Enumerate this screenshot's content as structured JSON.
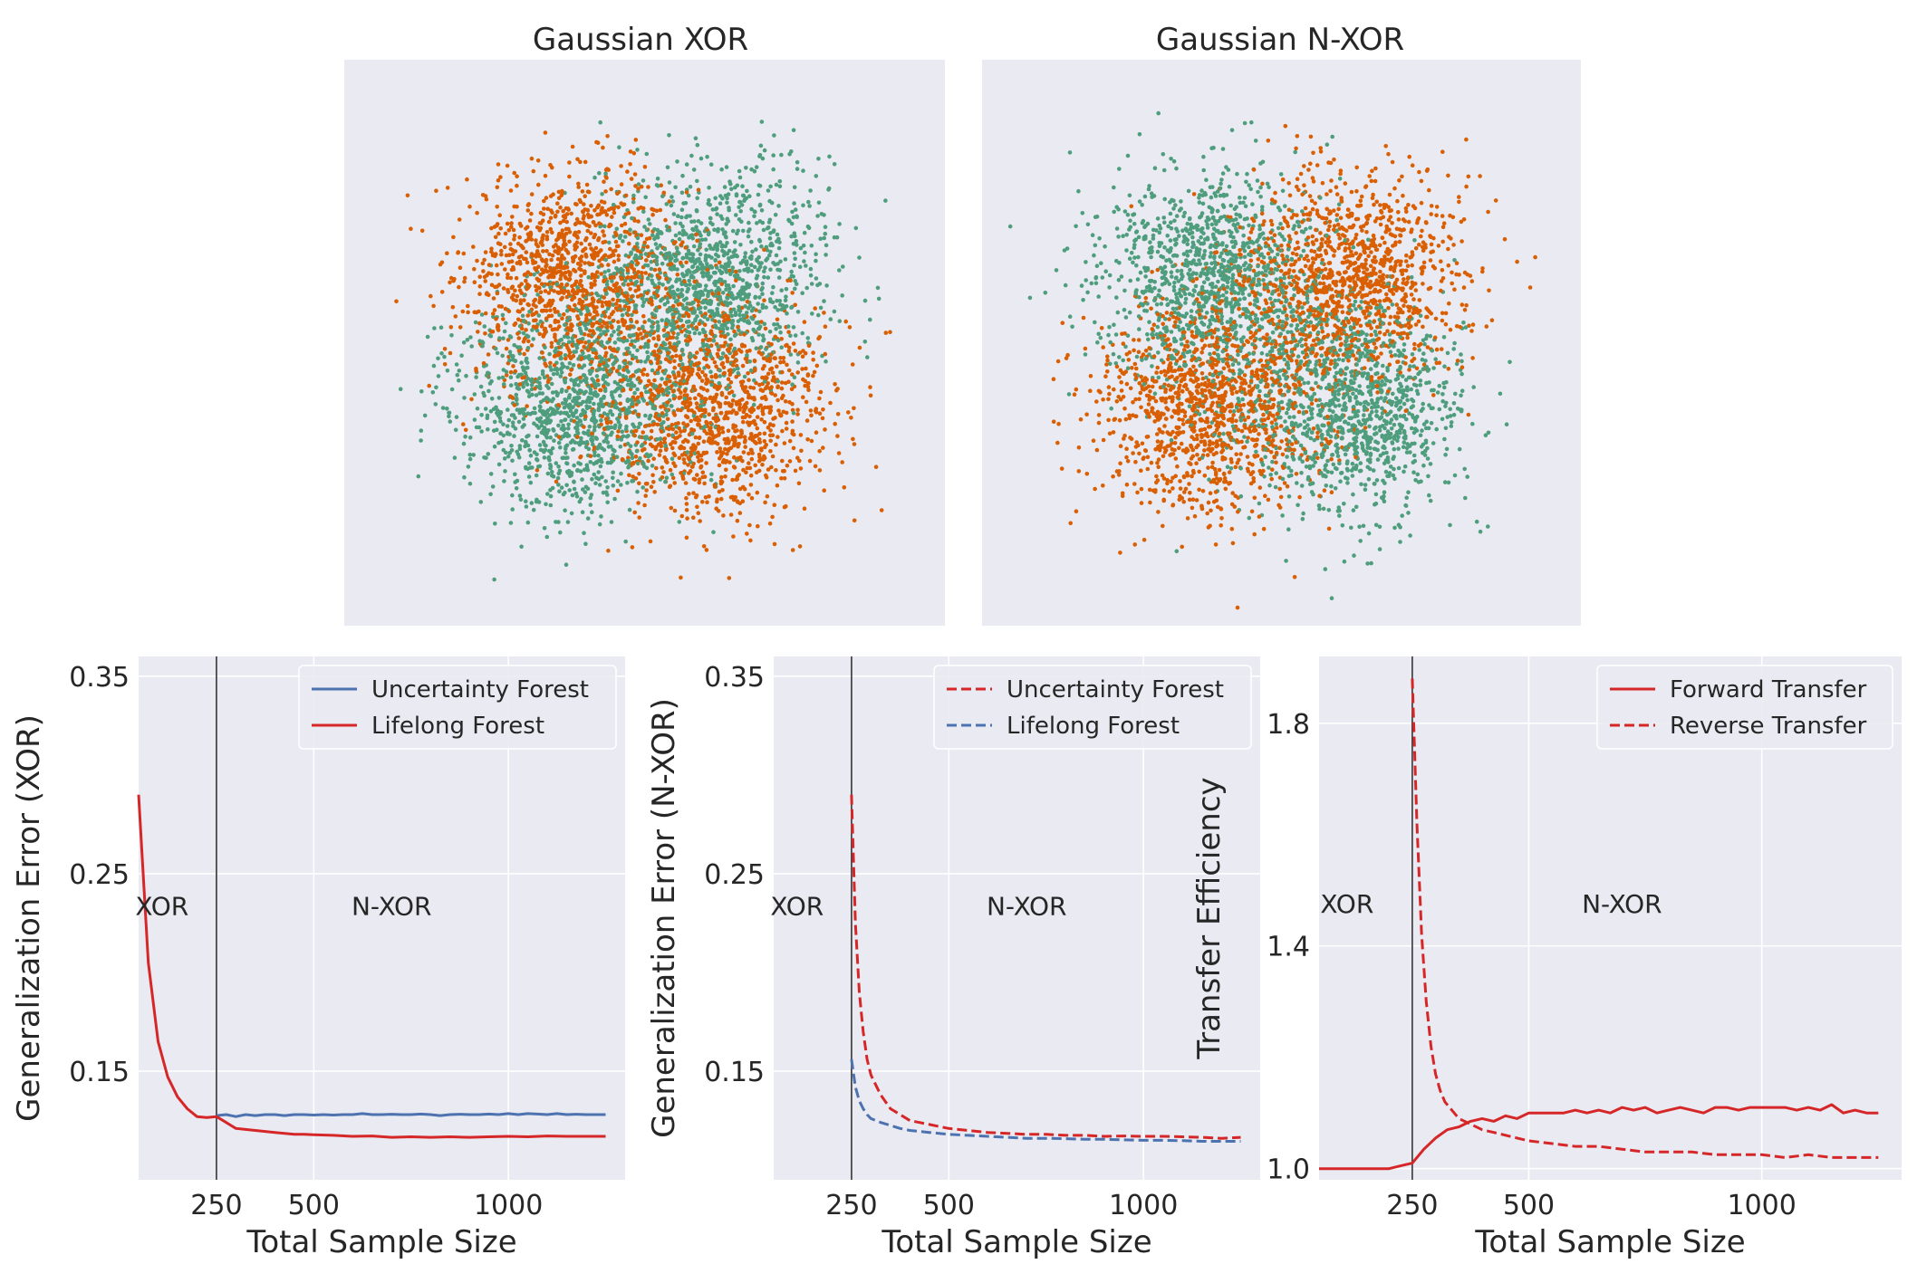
{
  "colors": {
    "panel_bg": "#EAEAF2",
    "grid": "#FFFFFF",
    "scatter_orange": "#D95F02",
    "scatter_green": "#4E9E7E",
    "blue": "#4C72B0",
    "red": "#D62728",
    "vline": "#333333"
  },
  "chart_data": [
    {
      "type": "scatter",
      "title": "Gaussian XOR",
      "axes_visible": false,
      "grid": false,
      "xlim": [
        -2.4,
        2.4
      ],
      "ylim": [
        -2.4,
        2.4
      ],
      "clusters": [
        {
          "class": "orange",
          "center": [
            -0.55,
            0.55
          ],
          "std": 0.45,
          "n": 1200
        },
        {
          "class": "orange",
          "center": [
            0.55,
            -0.55
          ],
          "std": 0.45,
          "n": 1200
        },
        {
          "class": "green",
          "center": [
            0.55,
            0.55
          ],
          "std": 0.45,
          "n": 1200
        },
        {
          "class": "green",
          "center": [
            -0.55,
            -0.55
          ],
          "std": 0.45,
          "n": 1200
        }
      ]
    },
    {
      "type": "scatter",
      "title": "Gaussian N-XOR",
      "axes_visible": false,
      "grid": false,
      "xlim": [
        -2.4,
        2.4
      ],
      "ylim": [
        -2.4,
        2.4
      ],
      "clusters": [
        {
          "class": "green",
          "center": [
            -0.55,
            0.55
          ],
          "std": 0.45,
          "n": 1200
        },
        {
          "class": "green",
          "center": [
            0.55,
            -0.55
          ],
          "std": 0.45,
          "n": 1200
        },
        {
          "class": "orange",
          "center": [
            0.55,
            0.55
          ],
          "std": 0.45,
          "n": 1200
        },
        {
          "class": "orange",
          "center": [
            -0.55,
            -0.55
          ],
          "std": 0.45,
          "n": 1200
        }
      ]
    },
    {
      "type": "line",
      "title": "",
      "xlabel": "Total Sample Size",
      "ylabel": "Generalization Error (XOR)",
      "xlim": [
        50,
        1300
      ],
      "ylim": [
        0.095,
        0.36
      ],
      "xticks": [
        250,
        500,
        1000
      ],
      "xtick_labels": [
        "250",
        "500",
        "1000"
      ],
      "yticks": [
        0.15,
        0.25,
        0.35
      ],
      "ytick_labels": [
        "0.15",
        "0.25",
        "0.35"
      ],
      "grid": true,
      "vline": 250,
      "annotations": [
        {
          "text": "XOR",
          "x": 110,
          "y": 0.229
        },
        {
          "text": "N-XOR",
          "x": 700,
          "y": 0.229
        }
      ],
      "legend": "top-right",
      "series": [
        {
          "name": "Uncertainty Forest",
          "color": "blue",
          "dash": false,
          "x": [
            250,
            275,
            300,
            325,
            350,
            375,
            400,
            425,
            450,
            475,
            500,
            525,
            550,
            575,
            600,
            625,
            650,
            675,
            700,
            725,
            750,
            775,
            800,
            825,
            850,
            875,
            900,
            925,
            950,
            975,
            1000,
            1025,
            1050,
            1075,
            1100,
            1125,
            1150,
            1175,
            1200,
            1225,
            1250
          ],
          "y": [
            0.1275,
            0.128,
            0.127,
            0.128,
            0.1275,
            0.128,
            0.128,
            0.1275,
            0.128,
            0.128,
            0.1278,
            0.128,
            0.1278,
            0.128,
            0.128,
            0.1285,
            0.128,
            0.128,
            0.1282,
            0.128,
            0.128,
            0.1283,
            0.128,
            0.1275,
            0.128,
            0.1282,
            0.128,
            0.128,
            0.1283,
            0.128,
            0.1285,
            0.128,
            0.1285,
            0.1283,
            0.128,
            0.1285,
            0.128,
            0.1282,
            0.128,
            0.128,
            0.128
          ]
        },
        {
          "name": "Lifelong Forest",
          "color": "red",
          "dash": false,
          "x": [
            50,
            75,
            100,
            125,
            150,
            175,
            200,
            225,
            250,
            275,
            300,
            325,
            350,
            375,
            400,
            425,
            450,
            475,
            500,
            550,
            600,
            650,
            700,
            750,
            800,
            850,
            900,
            950,
            1000,
            1050,
            1100,
            1150,
            1200,
            1250
          ],
          "y": [
            0.29,
            0.205,
            0.165,
            0.147,
            0.137,
            0.131,
            0.127,
            0.1265,
            0.127,
            0.124,
            0.121,
            0.1205,
            0.12,
            0.1195,
            0.119,
            0.1185,
            0.118,
            0.118,
            0.1178,
            0.1175,
            0.117,
            0.1172,
            0.1165,
            0.1168,
            0.1165,
            0.1168,
            0.1165,
            0.1168,
            0.117,
            0.1168,
            0.1172,
            0.117,
            0.117,
            0.117
          ]
        }
      ]
    },
    {
      "type": "line",
      "title": "",
      "xlabel": "Total Sample Size",
      "ylabel": "Generalization Error (N-XOR)",
      "xlim": [
        50,
        1300
      ],
      "ylim": [
        0.095,
        0.36
      ],
      "xticks": [
        250,
        500,
        1000
      ],
      "xtick_labels": [
        "250",
        "500",
        "1000"
      ],
      "yticks": [
        0.15,
        0.25,
        0.35
      ],
      "ytick_labels": [
        "0.15",
        "0.25",
        "0.35"
      ],
      "grid": true,
      "vline": 250,
      "annotations": [
        {
          "text": "XOR",
          "x": 110,
          "y": 0.229
        },
        {
          "text": "N-XOR",
          "x": 700,
          "y": 0.229
        }
      ],
      "legend": "top-right",
      "series": [
        {
          "name": "Uncertainty Forest",
          "color": "red",
          "dash": true,
          "x": [
            250,
            260,
            270,
            280,
            290,
            300,
            325,
            350,
            375,
            400,
            450,
            500,
            550,
            600,
            650,
            700,
            750,
            800,
            850,
            900,
            950,
            1000,
            1050,
            1100,
            1150,
            1200,
            1250
          ],
          "y": [
            0.29,
            0.225,
            0.19,
            0.17,
            0.156,
            0.148,
            0.138,
            0.131,
            0.128,
            0.125,
            0.123,
            0.121,
            0.12,
            0.119,
            0.1185,
            0.118,
            0.118,
            0.1175,
            0.1175,
            0.117,
            0.1172,
            0.117,
            0.117,
            0.1168,
            0.1165,
            0.116,
            0.1165
          ]
        },
        {
          "name": "Lifelong Forest",
          "color": "blue",
          "dash": true,
          "x": [
            250,
            260,
            270,
            280,
            290,
            300,
            325,
            350,
            375,
            400,
            450,
            500,
            550,
            600,
            650,
            700,
            750,
            800,
            850,
            900,
            950,
            1000,
            1050,
            1100,
            1150,
            1200,
            1250
          ],
          "y": [
            0.156,
            0.142,
            0.135,
            0.131,
            0.128,
            0.126,
            0.124,
            0.1225,
            0.121,
            0.12,
            0.119,
            0.118,
            0.1175,
            0.117,
            0.1165,
            0.116,
            0.116,
            0.1158,
            0.1155,
            0.1155,
            0.1152,
            0.115,
            0.115,
            0.1148,
            0.1145,
            0.1145,
            0.1145
          ]
        }
      ]
    },
    {
      "type": "line",
      "title": "",
      "xlabel": "Total Sample Size",
      "ylabel": "Transfer Efficiency",
      "xlim": [
        50,
        1300
      ],
      "ylim": [
        0.98,
        1.92
      ],
      "xticks": [
        250,
        500,
        1000
      ],
      "xtick_labels": [
        "250",
        "500",
        "1000"
      ],
      "yticks": [
        1.0,
        1.4,
        1.8
      ],
      "ytick_labels": [
        "1.0",
        "1.4",
        "1.8"
      ],
      "grid": true,
      "vline": 250,
      "annotations": [
        {
          "text": "XOR",
          "x": 110,
          "y": 1.46
        },
        {
          "text": "N-XOR",
          "x": 700,
          "y": 1.46
        }
      ],
      "legend": "top-right",
      "series": [
        {
          "name": "Forward Transfer",
          "color": "red",
          "dash": false,
          "x": [
            50,
            75,
            100,
            125,
            150,
            175,
            200,
            225,
            250,
            275,
            300,
            325,
            350,
            375,
            400,
            425,
            450,
            475,
            500,
            525,
            550,
            575,
            600,
            625,
            650,
            675,
            700,
            725,
            750,
            775,
            800,
            825,
            850,
            875,
            900,
            925,
            950,
            975,
            1000,
            1025,
            1050,
            1075,
            1100,
            1125,
            1150,
            1175,
            1200,
            1225,
            1250
          ],
          "y": [
            1.0,
            1.0,
            1.0,
            1.0,
            1.0,
            1.0,
            1.0,
            1.005,
            1.01,
            1.035,
            1.055,
            1.07,
            1.075,
            1.085,
            1.09,
            1.085,
            1.095,
            1.09,
            1.1,
            1.1,
            1.1,
            1.1,
            1.105,
            1.1,
            1.105,
            1.1,
            1.11,
            1.105,
            1.11,
            1.1,
            1.105,
            1.11,
            1.105,
            1.1,
            1.11,
            1.11,
            1.105,
            1.11,
            1.11,
            1.11,
            1.11,
            1.105,
            1.11,
            1.105,
            1.115,
            1.1,
            1.105,
            1.1,
            1.1
          ]
        },
        {
          "name": "Reverse Transfer",
          "color": "red",
          "dash": true,
          "x": [
            250,
            260,
            270,
            280,
            290,
            300,
            310,
            320,
            330,
            340,
            350,
            375,
            400,
            425,
            450,
            475,
            500,
            550,
            600,
            650,
            700,
            750,
            800,
            850,
            900,
            950,
            1000,
            1050,
            1100,
            1150,
            1200,
            1250
          ],
          "y": [
            1.88,
            1.62,
            1.42,
            1.3,
            1.22,
            1.17,
            1.14,
            1.12,
            1.11,
            1.1,
            1.09,
            1.08,
            1.07,
            1.065,
            1.06,
            1.055,
            1.05,
            1.045,
            1.04,
            1.04,
            1.035,
            1.03,
            1.03,
            1.03,
            1.025,
            1.025,
            1.025,
            1.02,
            1.025,
            1.02,
            1.02,
            1.02
          ]
        }
      ]
    }
  ]
}
